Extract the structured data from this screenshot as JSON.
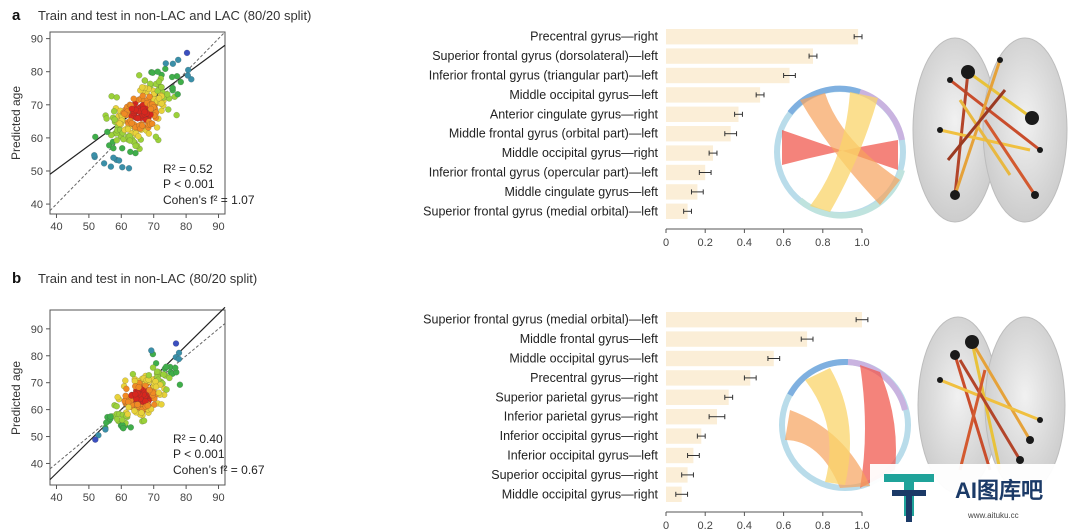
{
  "panels": [
    {
      "letter": "a",
      "title": "Train and test in non-LAC and LAC (80/20 split)",
      "scatter": {
        "type": "scatter",
        "ylabel": "Predicted age",
        "xlim": [
          38,
          92
        ],
        "ylim": [
          37,
          92
        ],
        "xticks": [
          40,
          50,
          60,
          70,
          80,
          90
        ],
        "yticks": [
          40,
          50,
          60,
          70,
          80,
          90
        ],
        "r2_label": "R² = 0.52",
        "p_label": "P < 0.001",
        "cohen_label": "Cohen’s f² = 1.07",
        "fit_line": [
          [
            38,
            49
          ],
          [
            92,
            88
          ]
        ],
        "identity_line": [
          [
            38,
            38
          ],
          [
            92,
            92
          ]
        ]
      },
      "bars": {
        "type": "bar",
        "orientation": "horizontal",
        "categories": [
          "Precentral gyrus—right",
          "Superior frontal gyrus (dorsolateral)—left",
          "Inferior frontal gyrus (triangular part)—left",
          "Middle occipital gyrus—left",
          "Anterior cingulate gyrus—right",
          "Middle frontal gyrus (orbital part)—left",
          "Middle occipital gyrus—right",
          "Inferior frontal gyrus (opercular part)—left",
          "Middle cingulate gyrus—left",
          "Superior frontal gyrus (medial orbital)—left"
        ],
        "values": [
          0.98,
          0.75,
          0.63,
          0.48,
          0.37,
          0.33,
          0.24,
          0.2,
          0.16,
          0.11
        ],
        "errors": [
          0.02,
          0.02,
          0.03,
          0.02,
          0.02,
          0.03,
          0.02,
          0.03,
          0.03,
          0.02
        ],
        "xlim": [
          0,
          1.0
        ],
        "xticks": [
          "0",
          "0.2",
          "0.4",
          "0.6",
          "0.8",
          "1.0"
        ]
      }
    },
    {
      "letter": "b",
      "title": "Train and test in non-LAC (80/20 split)",
      "scatter": {
        "type": "scatter",
        "ylabel": "Predicted age",
        "xlim": [
          38,
          92
        ],
        "ylim": [
          32,
          97
        ],
        "xticks": [
          40,
          50,
          60,
          70,
          80,
          90
        ],
        "yticks": [
          40,
          50,
          60,
          70,
          80,
          90
        ],
        "r2_label": "R² = 0.40",
        "p_label": "P < 0.001",
        "cohen_label": "Cohen’s f² = 0.67",
        "fit_line": [
          [
            38,
            34
          ],
          [
            92,
            98
          ]
        ],
        "identity_line": [
          [
            38,
            38
          ],
          [
            92,
            92
          ]
        ]
      },
      "bars": {
        "type": "bar",
        "orientation": "horizontal",
        "categories": [
          "Superior frontal gyrus (medial orbital)—left",
          "Middle frontal gyrus—left",
          "Middle occipital gyrus—left",
          "Precentral gyrus—right",
          "Superior parietal gyrus—right",
          "Inferior parietal gyrus—right",
          "Inferior occipital gyrus—right",
          "Inferior occipital gyrus—left",
          "Superior occipital gyrus—right",
          "Middle occipital gyrus—right"
        ],
        "values": [
          1.0,
          0.72,
          0.55,
          0.43,
          0.32,
          0.26,
          0.18,
          0.14,
          0.11,
          0.08
        ],
        "errors": [
          0.03,
          0.03,
          0.03,
          0.03,
          0.02,
          0.04,
          0.02,
          0.03,
          0.03,
          0.03
        ],
        "xlim": [
          0,
          1.0
        ],
        "xticks": [
          "0",
          "0.2",
          "0.4",
          "0.6",
          "0.8",
          "1.0"
        ]
      }
    }
  ],
  "watermark": {
    "text": "AI图库吧",
    "url": "www.aituku.cc"
  },
  "colors": {
    "bar_fill": "#fbeed7",
    "axis": "#555555",
    "chord_red": "#f05a4f",
    "chord_orange": "#f7a35c",
    "chord_yellow": "#f9d46a",
    "brand": "#1b3a67",
    "brand_accent": "#1fa39a"
  }
}
